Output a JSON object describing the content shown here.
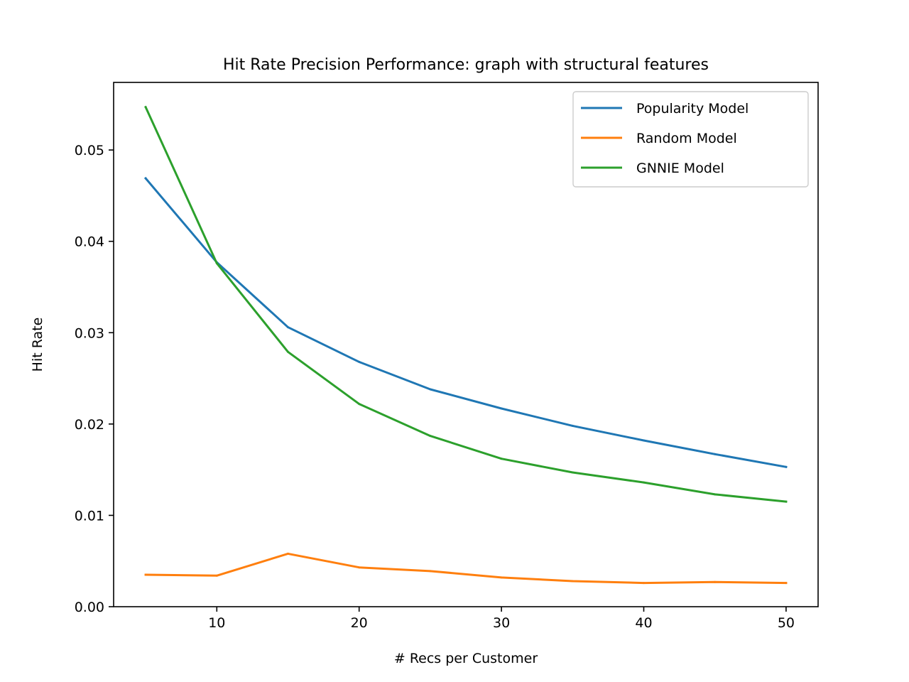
{
  "chart_data": {
    "type": "line",
    "title": "Hit Rate Precision Performance: graph with structural features",
    "xlabel": "# Recs per Customer",
    "ylabel": "Hit Rate",
    "x": [
      5,
      10,
      15,
      20,
      25,
      30,
      35,
      40,
      45,
      50
    ],
    "xlim": [
      2.75,
      52.25
    ],
    "ylim": [
      0,
      0.0574
    ],
    "xticks": [
      10,
      20,
      30,
      40,
      50
    ],
    "xtick_labels": [
      "10",
      "20",
      "30",
      "40",
      "50"
    ],
    "yticks": [
      0,
      0.01,
      0.02,
      0.03,
      0.04,
      0.05
    ],
    "ytick_labels": [
      "0.00",
      "0.01",
      "0.02",
      "0.03",
      "0.04",
      "0.05"
    ],
    "grid": false,
    "legend_position": "top-right",
    "series": [
      {
        "name": "Popularity Model",
        "color": "#1f77b4",
        "values": [
          0.0469,
          0.0377,
          0.0306,
          0.0268,
          0.0238,
          0.0217,
          0.0198,
          0.0182,
          0.0167,
          0.0153
        ]
      },
      {
        "name": "Random Model",
        "color": "#ff7f0e",
        "values": [
          0.0035,
          0.0034,
          0.0058,
          0.0043,
          0.0039,
          0.0032,
          0.0028,
          0.0026,
          0.0027,
          0.0026
        ]
      },
      {
        "name": "GNNIE Model",
        "color": "#2ca02c",
        "values": [
          0.0547,
          0.0376,
          0.0279,
          0.0222,
          0.0187,
          0.0162,
          0.0147,
          0.0136,
          0.0123,
          0.0115
        ]
      }
    ]
  }
}
